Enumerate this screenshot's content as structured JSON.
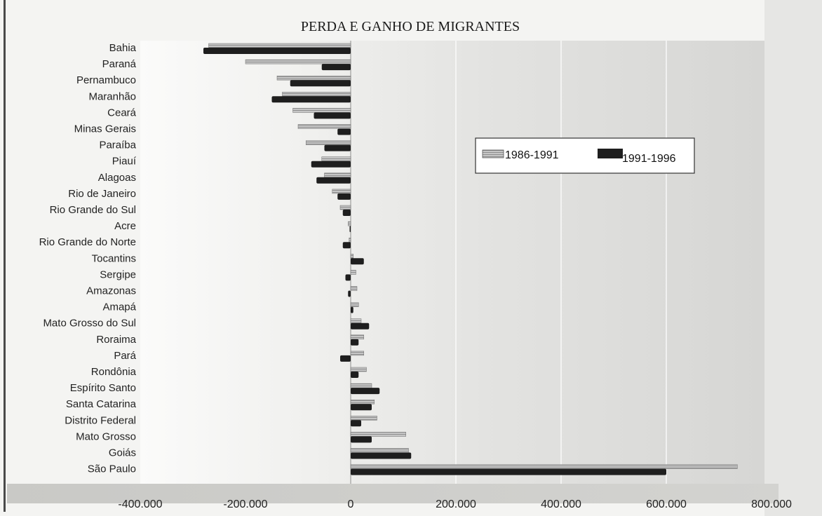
{
  "chart_data": {
    "type": "bar",
    "orientation": "horizontal",
    "title": "PERDA E GANHO DE MIGRANTES",
    "xlabel": "",
    "ylabel": "",
    "xlim": [
      -400000,
      800000
    ],
    "x_ticks": [
      -400000,
      -200000,
      0,
      200000,
      400000,
      600000,
      800000
    ],
    "x_tick_labels": [
      "-400.000",
      "-200.000",
      "0",
      "200.000",
      "400.000",
      "600.000",
      "800.000"
    ],
    "grid": true,
    "legend_position": "right",
    "categories": [
      "Bahia",
      "Paraná",
      "Pernambuco",
      "Maranhão",
      "Ceará",
      "Minas Gerais",
      "Paraíba",
      "Piauí",
      "Alagoas",
      "Rio de Janeiro",
      "Rio Grande do Sul",
      "Acre",
      "Rio Grande do Norte",
      "Tocantins",
      "Sergipe",
      "Amazonas",
      "Amapá",
      "Mato Grosso do Sul",
      "Roraima",
      "Pará",
      "Rondônia",
      "Espírito Santo",
      "Santa Catarina",
      "Distrito Federal",
      "Mato Grosso",
      "Goiás",
      "São Paulo"
    ],
    "series": [
      {
        "name": "1986-1991",
        "color": "#b8b8b8",
        "values": [
          -270000,
          -200000,
          -140000,
          -130000,
          -110000,
          -100000,
          -85000,
          -55000,
          -50000,
          -35000,
          -20000,
          -5000,
          -3000,
          5000,
          10000,
          12000,
          15000,
          20000,
          25000,
          25000,
          30000,
          40000,
          45000,
          50000,
          105000,
          110000,
          735000
        ]
      },
      {
        "name": "1991-1996",
        "color": "#1e1e1e",
        "values": [
          -280000,
          -55000,
          -115000,
          -150000,
          -70000,
          -25000,
          -50000,
          -75000,
          -65000,
          -25000,
          -15000,
          -2000,
          -15000,
          25000,
          -10000,
          -5000,
          5000,
          35000,
          15000,
          -20000,
          15000,
          55000,
          40000,
          20000,
          40000,
          115000,
          600000
        ]
      }
    ]
  }
}
